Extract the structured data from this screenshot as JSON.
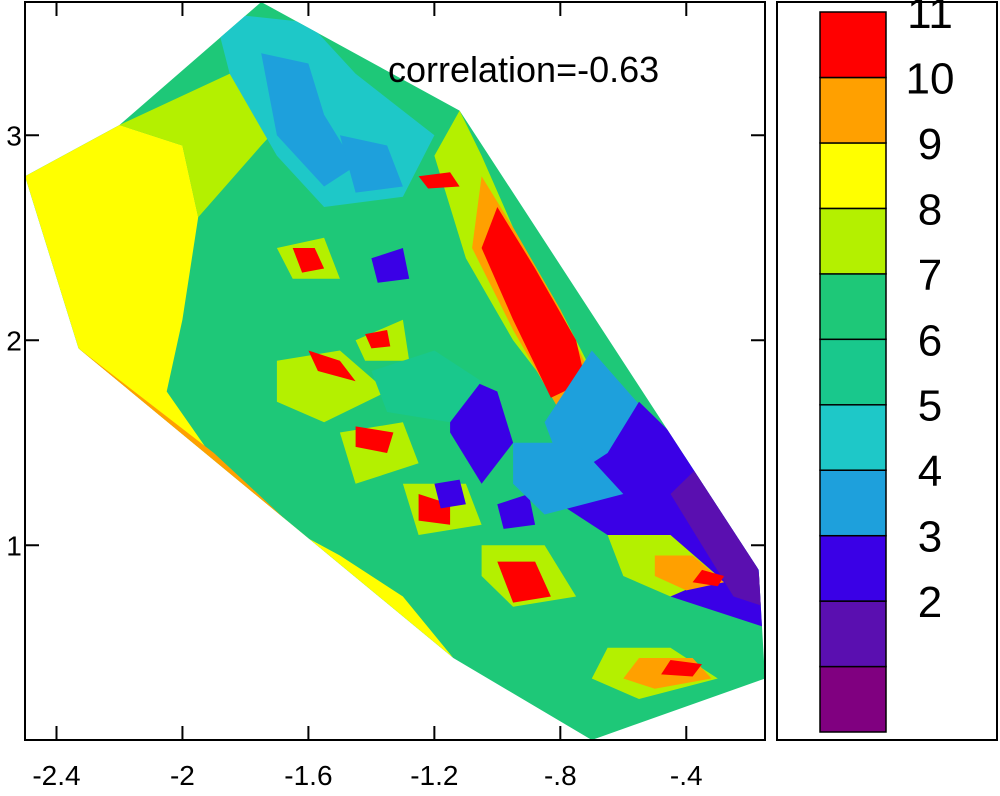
{
  "chart_data": {
    "type": "heatmap",
    "subtype": "filled-contour",
    "title": "",
    "xlabel": "",
    "ylabel": "",
    "annotation": "correlation=-0.63",
    "xlim": [
      -2.5,
      -0.15
    ],
    "ylim": [
      0.05,
      3.65
    ],
    "x_ticks": [
      {
        "value": -2.4,
        "label": "-2.4"
      },
      {
        "value": -2.0,
        "label": "-2"
      },
      {
        "value": -1.6,
        "label": "-1.6"
      },
      {
        "value": -1.2,
        "label": "-1.2"
      },
      {
        "value": -0.8,
        "label": "-.8"
      },
      {
        "value": -0.4,
        "label": "-.4"
      }
    ],
    "y_ticks": [
      {
        "value": 1,
        "label": "1"
      },
      {
        "value": 2,
        "label": "2"
      },
      {
        "value": 3,
        "label": "3"
      }
    ],
    "colorbar": {
      "levels": [
        {
          "label": "",
          "color": "#800080"
        },
        {
          "label": "2",
          "color": "#5a0fb0"
        },
        {
          "label": "3",
          "color": "#3a00e6"
        },
        {
          "label": "4",
          "color": "#1ea0dc"
        },
        {
          "label": "5",
          "color": "#1ec8c8"
        },
        {
          "label": "6",
          "color": "#19c88c"
        },
        {
          "label": "7",
          "color": "#1ec878"
        },
        {
          "label": "8",
          "color": "#b4f000"
        },
        {
          "label": "9",
          "color": "#ffff00"
        },
        {
          "label": "10",
          "color": "#ffa000"
        },
        {
          "label": "11",
          "color": "#ff0000"
        }
      ]
    },
    "region": {
      "background_level": 7,
      "hull": [
        [
          -1.75,
          3.65
        ],
        [
          -1.12,
          3.12
        ],
        [
          -0.17,
          0.88
        ],
        [
          -0.15,
          0.35
        ],
        [
          -0.7,
          0.05
        ],
        [
          -1.14,
          0.45
        ],
        [
          -2.33,
          1.96
        ],
        [
          -2.5,
          2.8
        ],
        [
          -2.2,
          3.05
        ]
      ],
      "patches": [
        {
          "level": 9,
          "points": [
            [
              -2.5,
              2.8
            ],
            [
              -2.2,
              3.05
            ],
            [
              -2.0,
              2.95
            ],
            [
              -1.95,
              2.6
            ],
            [
              -2.0,
              2.1
            ],
            [
              -2.05,
              1.75
            ],
            [
              -1.8,
              1.2
            ],
            [
              -1.5,
              0.95
            ],
            [
              -1.3,
              0.75
            ],
            [
              -1.14,
              0.45
            ],
            [
              -2.33,
              1.96
            ]
          ]
        },
        {
          "level": 10,
          "points": [
            [
              -2.33,
              1.96
            ],
            [
              -1.9,
              1.45
            ],
            [
              -1.55,
              0.95
            ],
            [
              -1.4,
              0.75
            ],
            [
              -1.14,
              0.45
            ],
            [
              -1.7,
              1.1
            ],
            [
              -2.1,
              1.6
            ]
          ]
        },
        {
          "level": 8,
          "points": [
            [
              -2.2,
              3.05
            ],
            [
              -1.85,
              3.3
            ],
            [
              -1.6,
              3.2
            ],
            [
              -1.75,
              2.95
            ],
            [
              -1.95,
              2.6
            ],
            [
              -2.0,
              2.95
            ]
          ]
        },
        {
          "level": 5,
          "points": [
            [
              -1.9,
              3.6
            ],
            [
              -1.6,
              3.55
            ],
            [
              -1.45,
              3.3
            ],
            [
              -1.2,
              3.0
            ],
            [
              -1.3,
              2.7
            ],
            [
              -1.55,
              2.65
            ],
            [
              -1.7,
              2.9
            ],
            [
              -1.85,
              3.3
            ]
          ]
        },
        {
          "level": 4,
          "points": [
            [
              -1.75,
              3.4
            ],
            [
              -1.6,
              3.35
            ],
            [
              -1.55,
              3.1
            ],
            [
              -1.45,
              2.85
            ],
            [
              -1.55,
              2.75
            ],
            [
              -1.7,
              3.0
            ]
          ]
        },
        {
          "level": 4,
          "points": [
            [
              -1.5,
              3.0
            ],
            [
              -1.35,
              2.95
            ],
            [
              -1.3,
              2.75
            ],
            [
              -1.45,
              2.72
            ]
          ]
        },
        {
          "level": 8,
          "points": [
            [
              -1.12,
              3.12
            ],
            [
              -1.05,
              2.9
            ],
            [
              -0.95,
              2.55
            ],
            [
              -0.8,
              2.15
            ],
            [
              -0.65,
              1.7
            ],
            [
              -0.75,
              1.6
            ],
            [
              -0.95,
              2.0
            ],
            [
              -1.1,
              2.4
            ],
            [
              -1.2,
              2.9
            ]
          ]
        },
        {
          "level": 10,
          "points": [
            [
              -1.05,
              2.8
            ],
            [
              -0.95,
              2.55
            ],
            [
              -0.8,
              2.15
            ],
            [
              -0.68,
              1.75
            ],
            [
              -0.8,
              1.65
            ],
            [
              -0.95,
              2.05
            ],
            [
              -1.08,
              2.45
            ]
          ]
        },
        {
          "level": 11,
          "points": [
            [
              -1.0,
              2.65
            ],
            [
              -0.88,
              2.35
            ],
            [
              -0.75,
              2.0
            ],
            [
              -0.72,
              1.8
            ],
            [
              -0.83,
              1.72
            ],
            [
              -0.95,
              2.1
            ],
            [
              -1.05,
              2.45
            ]
          ]
        },
        {
          "level": 4,
          "points": [
            [
              -0.7,
              1.95
            ],
            [
              -0.5,
              1.6
            ],
            [
              -0.3,
              1.25
            ],
            [
              -0.17,
              0.88
            ],
            [
              -0.35,
              0.9
            ],
            [
              -0.55,
              1.1
            ],
            [
              -0.8,
              1.4
            ],
            [
              -0.85,
              1.6
            ]
          ]
        },
        {
          "level": 3,
          "points": [
            [
              -0.55,
              1.7
            ],
            [
              -0.35,
              1.4
            ],
            [
              -0.17,
              0.88
            ],
            [
              -0.15,
              0.6
            ],
            [
              -0.45,
              0.75
            ],
            [
              -0.6,
              1.0
            ],
            [
              -0.85,
              1.25
            ],
            [
              -0.65,
              1.45
            ]
          ]
        },
        {
          "level": 2,
          "points": [
            [
              -0.35,
              1.4
            ],
            [
              -0.2,
              1.1
            ],
            [
              -0.15,
              0.7
            ],
            [
              -0.25,
              0.75
            ],
            [
              -0.35,
              1.0
            ],
            [
              -0.45,
              1.25
            ]
          ]
        },
        {
          "level": 3,
          "points": [
            [
              -1.15,
              1.85
            ],
            [
              -1.0,
              1.75
            ],
            [
              -0.95,
              1.5
            ],
            [
              -1.05,
              1.3
            ],
            [
              -1.15,
              1.55
            ]
          ]
        },
        {
          "level": 8,
          "points": [
            [
              -0.65,
              1.05
            ],
            [
              -0.45,
              1.05
            ],
            [
              -0.3,
              0.85
            ],
            [
              -0.45,
              0.75
            ],
            [
              -0.6,
              0.85
            ]
          ]
        },
        {
          "level": 10,
          "points": [
            [
              -0.5,
              0.95
            ],
            [
              -0.38,
              0.95
            ],
            [
              -0.28,
              0.82
            ],
            [
              -0.4,
              0.78
            ],
            [
              -0.5,
              0.85
            ]
          ]
        },
        {
          "level": 11,
          "points": [
            [
              -0.35,
              0.88
            ],
            [
              -0.28,
              0.85
            ],
            [
              -0.3,
              0.8
            ],
            [
              -0.38,
              0.82
            ]
          ]
        },
        {
          "level": 8,
          "points": [
            [
              -0.65,
              0.5
            ],
            [
              -0.45,
              0.5
            ],
            [
              -0.3,
              0.35
            ],
            [
              -0.55,
              0.25
            ],
            [
              -0.7,
              0.35
            ]
          ]
        },
        {
          "level": 10,
          "points": [
            [
              -0.55,
              0.45
            ],
            [
              -0.38,
              0.45
            ],
            [
              -0.32,
              0.35
            ],
            [
              -0.5,
              0.3
            ],
            [
              -0.6,
              0.35
            ]
          ]
        },
        {
          "level": 11,
          "points": [
            [
              -0.45,
              0.44
            ],
            [
              -0.35,
              0.42
            ],
            [
              -0.38,
              0.36
            ],
            [
              -0.48,
              0.37
            ]
          ]
        },
        {
          "level": 8,
          "points": [
            [
              -1.7,
              1.9
            ],
            [
              -1.5,
              1.95
            ],
            [
              -1.35,
              1.75
            ],
            [
              -1.55,
              1.6
            ],
            [
              -1.7,
              1.7
            ]
          ]
        },
        {
          "level": 11,
          "points": [
            [
              -1.6,
              1.95
            ],
            [
              -1.5,
              1.9
            ],
            [
              -1.45,
              1.8
            ],
            [
              -1.57,
              1.85
            ]
          ]
        },
        {
          "level": 8,
          "points": [
            [
              -1.5,
              1.55
            ],
            [
              -1.3,
              1.6
            ],
            [
              -1.25,
              1.4
            ],
            [
              -1.45,
              1.3
            ]
          ]
        },
        {
          "level": 11,
          "points": [
            [
              -1.45,
              1.58
            ],
            [
              -1.33,
              1.55
            ],
            [
              -1.35,
              1.45
            ],
            [
              -1.45,
              1.48
            ]
          ]
        },
        {
          "level": 8,
          "points": [
            [
              -1.3,
              1.3
            ],
            [
              -1.1,
              1.3
            ],
            [
              -1.05,
              1.1
            ],
            [
              -1.25,
              1.05
            ]
          ]
        },
        {
          "level": 11,
          "points": [
            [
              -1.25,
              1.25
            ],
            [
              -1.15,
              1.2
            ],
            [
              -1.15,
              1.1
            ],
            [
              -1.25,
              1.12
            ]
          ]
        },
        {
          "level": 8,
          "points": [
            [
              -1.05,
              1.0
            ],
            [
              -0.85,
              1.0
            ],
            [
              -0.75,
              0.75
            ],
            [
              -0.95,
              0.7
            ],
            [
              -1.05,
              0.85
            ]
          ]
        },
        {
          "level": 11,
          "points": [
            [
              -1.0,
              0.92
            ],
            [
              -0.88,
              0.92
            ],
            [
              -0.83,
              0.75
            ],
            [
              -0.95,
              0.72
            ]
          ]
        },
        {
          "level": 8,
          "points": [
            [
              -1.45,
              2.0
            ],
            [
              -1.3,
              2.1
            ],
            [
              -1.28,
              1.9
            ],
            [
              -1.42,
              1.9
            ]
          ]
        },
        {
          "level": 11,
          "points": [
            [
              -1.42,
              2.03
            ],
            [
              -1.35,
              2.05
            ],
            [
              -1.34,
              1.97
            ],
            [
              -1.4,
              1.96
            ]
          ]
        },
        {
          "level": 8,
          "points": [
            [
              -1.7,
              2.45
            ],
            [
              -1.55,
              2.5
            ],
            [
              -1.5,
              2.3
            ],
            [
              -1.65,
              2.3
            ]
          ]
        },
        {
          "level": 11,
          "points": [
            [
              -1.65,
              2.45
            ],
            [
              -1.58,
              2.45
            ],
            [
              -1.55,
              2.35
            ],
            [
              -1.62,
              2.33
            ]
          ]
        },
        {
          "level": 3,
          "points": [
            [
              -1.4,
              2.4
            ],
            [
              -1.3,
              2.45
            ],
            [
              -1.28,
              2.3
            ],
            [
              -1.38,
              2.28
            ]
          ]
        },
        {
          "level": 3,
          "points": [
            [
              -1.0,
              1.2
            ],
            [
              -0.9,
              1.25
            ],
            [
              -0.88,
              1.1
            ],
            [
              -0.98,
              1.08
            ]
          ]
        },
        {
          "level": 3,
          "points": [
            [
              -1.2,
              1.3
            ],
            [
              -1.12,
              1.32
            ],
            [
              -1.1,
              1.2
            ],
            [
              -1.18,
              1.18
            ]
          ]
        },
        {
          "level": 4,
          "points": [
            [
              -0.95,
              1.5
            ],
            [
              -0.75,
              1.5
            ],
            [
              -0.6,
              1.25
            ],
            [
              -0.85,
              1.15
            ],
            [
              -0.95,
              1.3
            ]
          ]
        },
        {
          "level": 6,
          "points": [
            [
              -1.4,
              1.85
            ],
            [
              -1.2,
              1.95
            ],
            [
              -1.05,
              1.8
            ],
            [
              -1.15,
              1.6
            ],
            [
              -1.35,
              1.65
            ]
          ]
        },
        {
          "level": 11,
          "points": [
            [
              -1.25,
              2.8
            ],
            [
              -1.15,
              2.82
            ],
            [
              -1.12,
              2.75
            ],
            [
              -1.22,
              2.74
            ]
          ]
        }
      ]
    }
  }
}
